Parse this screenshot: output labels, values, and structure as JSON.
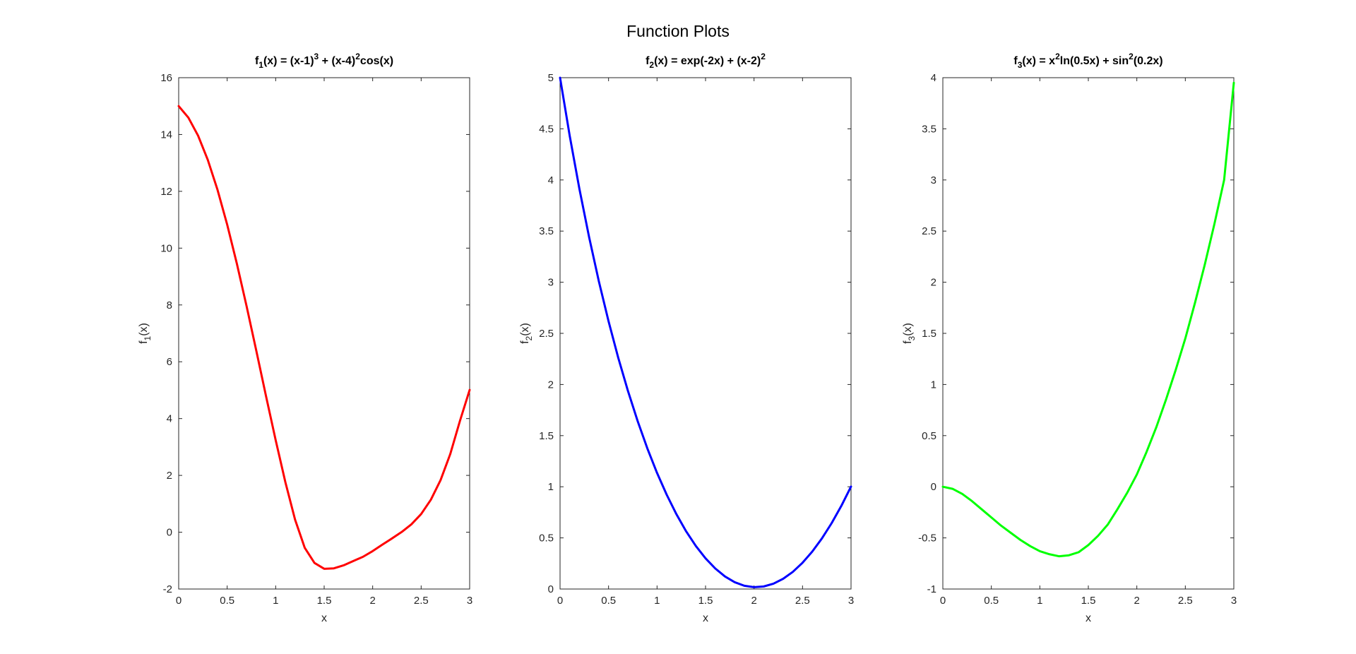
{
  "figure": {
    "title": "Function Plots"
  },
  "chart_data": [
    {
      "type": "line",
      "title_parts": [
        {
          "text": "f",
          "pos": "base"
        },
        {
          "text": "1",
          "pos": "sub"
        },
        {
          "text": "(x) = (x-1)",
          "pos": "base"
        },
        {
          "text": "3",
          "pos": "sup"
        },
        {
          "text": " + (x-4)",
          "pos": "base"
        },
        {
          "text": "2",
          "pos": "sup"
        },
        {
          "text": "cos(x)",
          "pos": "base"
        }
      ],
      "xlabel": "x",
      "ylabel_parts": [
        {
          "text": "f",
          "pos": "base"
        },
        {
          "text": "1",
          "pos": "sub"
        },
        {
          "text": "(x)",
          "pos": "base"
        }
      ],
      "xlim": [
        0,
        3
      ],
      "ylim": [
        -2,
        16
      ],
      "xticks": [
        0,
        0.5,
        1,
        1.5,
        2,
        2.5,
        3
      ],
      "xtick_labels": [
        "0",
        "0.5",
        "1",
        "1.5",
        "2",
        "2.5",
        "3"
      ],
      "yticks": [
        -2,
        0,
        2,
        4,
        6,
        8,
        10,
        12,
        14,
        16
      ],
      "ytick_labels": [
        "-2",
        "0",
        "2",
        "4",
        "6",
        "8",
        "10",
        "12",
        "14",
        "16"
      ],
      "grid": false,
      "series": [
        {
          "color": "#ff0000",
          "x": [
            0,
            0.1,
            0.2,
            0.3,
            0.4,
            0.5,
            0.6,
            0.7,
            0.8,
            0.9,
            1.0,
            1.1,
            1.2,
            1.3,
            1.4,
            1.5,
            1.6,
            1.7,
            1.8,
            1.9,
            2.0,
            2.1,
            2.2,
            2.3,
            2.4,
            2.5,
            2.6,
            2.7,
            2.8,
            2.9,
            3.0
          ],
          "y": [
            15.0,
            14.593,
            13.96,
            13.109,
            12.058,
            10.829,
            9.451,
            7.959,
            6.393,
            4.797,
            3.242,
            1.76,
            0.443,
            -0.551,
            -1.082,
            -1.287,
            -1.272,
            -1.166,
            -1.014,
            -0.866,
            -0.665,
            -0.438,
            -0.218,
            0.01,
            0.279,
            0.64,
            1.143,
            1.833,
            2.751,
            3.92,
            5.01
          ]
        }
      ]
    },
    {
      "type": "line",
      "title_parts": [
        {
          "text": "f",
          "pos": "base"
        },
        {
          "text": "2",
          "pos": "sub"
        },
        {
          "text": "(x) = exp(-2x) + (x-2)",
          "pos": "base"
        },
        {
          "text": "2",
          "pos": "sup"
        }
      ],
      "xlabel": "x",
      "ylabel_parts": [
        {
          "text": "f",
          "pos": "base"
        },
        {
          "text": "2",
          "pos": "sub"
        },
        {
          "text": "(x)",
          "pos": "base"
        }
      ],
      "xlim": [
        0,
        3
      ],
      "ylim": [
        0,
        5
      ],
      "xticks": [
        0,
        0.5,
        1,
        1.5,
        2,
        2.5,
        3
      ],
      "xtick_labels": [
        "0",
        "0.5",
        "1",
        "1.5",
        "2",
        "2.5",
        "3"
      ],
      "yticks": [
        0,
        0.5,
        1,
        1.5,
        2,
        2.5,
        3,
        3.5,
        4,
        4.5,
        5
      ],
      "ytick_labels": [
        "0",
        "0.5",
        "1",
        "1.5",
        "2",
        "2.5",
        "3",
        "3.5",
        "4",
        "4.5",
        "5"
      ],
      "grid": false,
      "series": [
        {
          "color": "#0000ff",
          "x": [
            0,
            0.1,
            0.2,
            0.3,
            0.4,
            0.5,
            0.6,
            0.7,
            0.8,
            0.9,
            1.0,
            1.1,
            1.2,
            1.3,
            1.4,
            1.5,
            1.6,
            1.7,
            1.8,
            1.9,
            2.0,
            2.1,
            2.2,
            2.3,
            2.4,
            2.5,
            2.6,
            2.7,
            2.8,
            2.9,
            3.0
          ],
          "y": [
            5.0,
            4.429,
            3.91,
            3.439,
            3.009,
            2.618,
            2.261,
            1.937,
            1.642,
            1.375,
            1.135,
            0.921,
            0.731,
            0.564,
            0.421,
            0.3,
            0.201,
            0.123,
            0.067,
            0.032,
            0.018,
            0.025,
            0.052,
            0.1,
            0.168,
            0.257,
            0.366,
            0.495,
            0.644,
            0.813,
            1.002
          ]
        }
      ]
    },
    {
      "type": "line",
      "title_parts": [
        {
          "text": "f",
          "pos": "base"
        },
        {
          "text": "3",
          "pos": "sub"
        },
        {
          "text": "(x) = x",
          "pos": "base"
        },
        {
          "text": "2",
          "pos": "sup"
        },
        {
          "text": "ln(0.5x) + sin",
          "pos": "base"
        },
        {
          "text": "2",
          "pos": "sup"
        },
        {
          "text": "(0.2x)",
          "pos": "base"
        }
      ],
      "xlabel": "x",
      "ylabel_parts": [
        {
          "text": "f",
          "pos": "base"
        },
        {
          "text": "3",
          "pos": "sub"
        },
        {
          "text": "(x)",
          "pos": "base"
        }
      ],
      "xlim": [
        0,
        3
      ],
      "ylim": [
        -1,
        4
      ],
      "xticks": [
        0,
        0.5,
        1,
        1.5,
        2,
        2.5,
        3
      ],
      "xtick_labels": [
        "0",
        "0.5",
        "1",
        "1.5",
        "2",
        "2.5",
        "3"
      ],
      "yticks": [
        -1,
        -0.5,
        0,
        0.5,
        1,
        1.5,
        2,
        2.5,
        3,
        3.5,
        4
      ],
      "ytick_labels": [
        "-1",
        "-0.5",
        "0",
        "0.5",
        "1",
        "1.5",
        "2",
        "2.5",
        "3",
        "3.5",
        "4"
      ],
      "grid": false,
      "series": [
        {
          "color": "#00ff00",
          "x": [
            0,
            0.1,
            0.2,
            0.3,
            0.4,
            0.5,
            0.6,
            0.7,
            0.8,
            0.9,
            1.0,
            1.1,
            1.2,
            1.3,
            1.4,
            1.5,
            1.6,
            1.7,
            1.8,
            1.9,
            2.0,
            2.1,
            2.2,
            2.3,
            2.4,
            2.5,
            2.6,
            2.7,
            2.8,
            2.9,
            3.0
          ],
          "y": [
            0.0,
            -0.02,
            -0.07,
            -0.14,
            -0.22,
            -0.3,
            -0.38,
            -0.45,
            -0.52,
            -0.58,
            -0.63,
            -0.66,
            -0.68,
            -0.67,
            -0.64,
            -0.57,
            -0.48,
            -0.37,
            -0.22,
            -0.06,
            0.12,
            0.34,
            0.58,
            0.85,
            1.14,
            1.45,
            1.8,
            2.17,
            2.57,
            3.0,
            3.95
          ]
        }
      ]
    }
  ]
}
